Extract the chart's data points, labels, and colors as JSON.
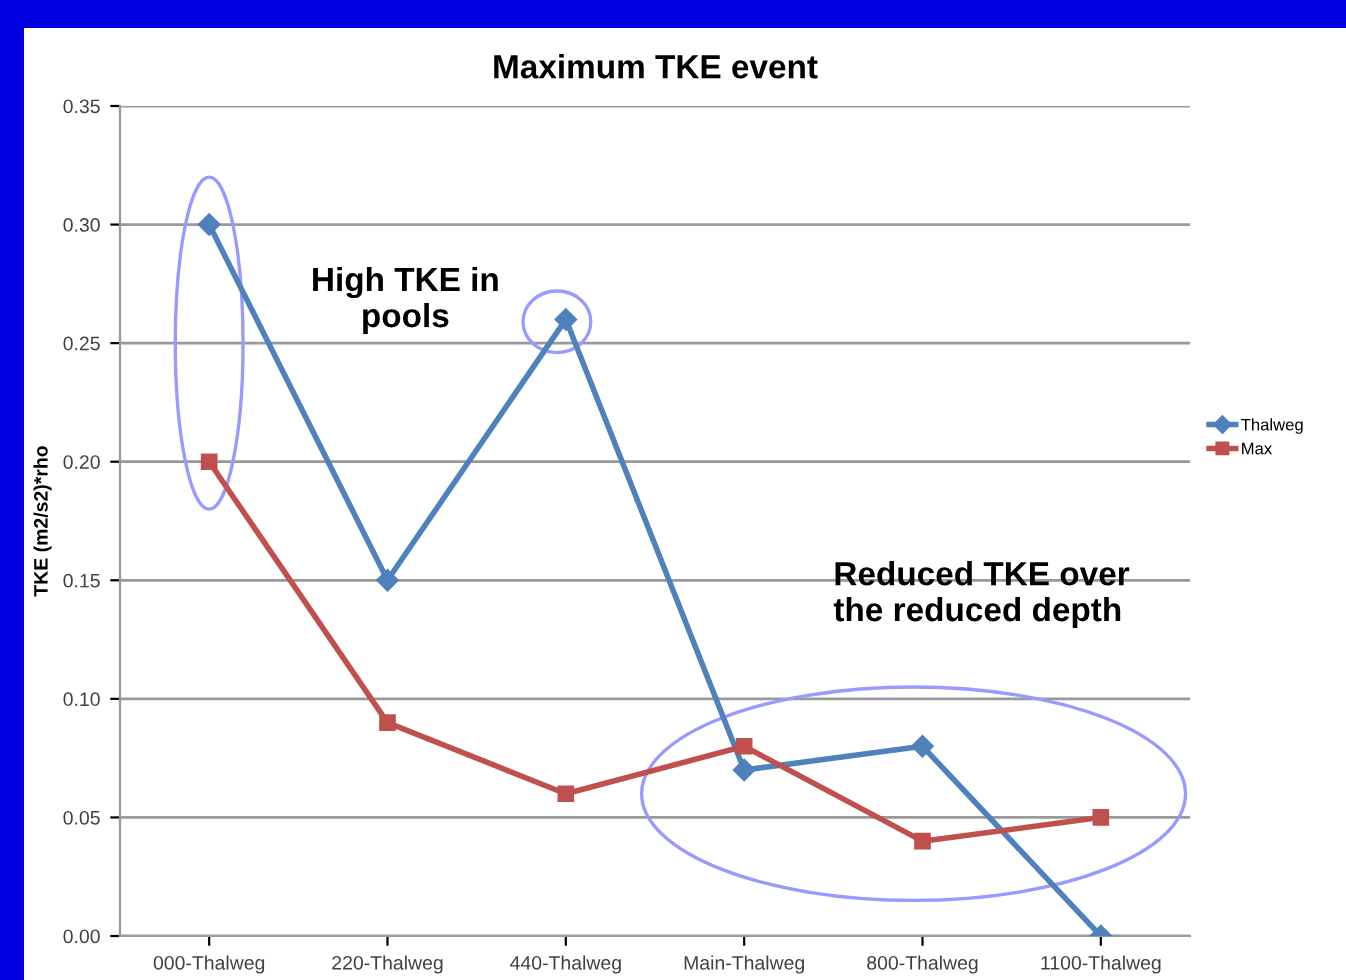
{
  "chart_data": {
    "type": "line",
    "title": "Maximum TKE event",
    "ylabel": "TKE (m2/s2)*rho",
    "categories": [
      "000-Thalweg",
      "220-Thalweg",
      "440-Thalweg",
      "Main-Thalweg",
      "800-Thalweg",
      "1100-Thalweg"
    ],
    "series": [
      {
        "name": "Thalweg",
        "color": "#4f81bd",
        "marker": "diamond",
        "values": [
          0.3,
          0.15,
          0.26,
          0.07,
          0.08,
          0.0
        ]
      },
      {
        "name": "Max",
        "color": "#c0504d",
        "marker": "square",
        "values": [
          0.2,
          0.09,
          0.06,
          0.08,
          0.04,
          0.05
        ]
      }
    ],
    "ylim": [
      0,
      0.35
    ],
    "yticks": [
      {
        "value": 0,
        "label": "0.00"
      },
      {
        "value": 0.05,
        "label": "0.05"
      },
      {
        "value": 0.1,
        "label": "0.10"
      },
      {
        "value": 0.15,
        "label": "0.15"
      },
      {
        "value": 0.2,
        "label": "0.20"
      },
      {
        "value": 0.25,
        "label": "0.25"
      },
      {
        "value": 0.3,
        "label": "0.30"
      },
      {
        "value": 0.35,
        "label": "0.35"
      }
    ],
    "grid": "y",
    "legend": "right",
    "line_style": "solid",
    "annotations": [
      "High TKE in\npools",
      "Reduced TKE over\nthe reduced depth"
    ]
  }
}
